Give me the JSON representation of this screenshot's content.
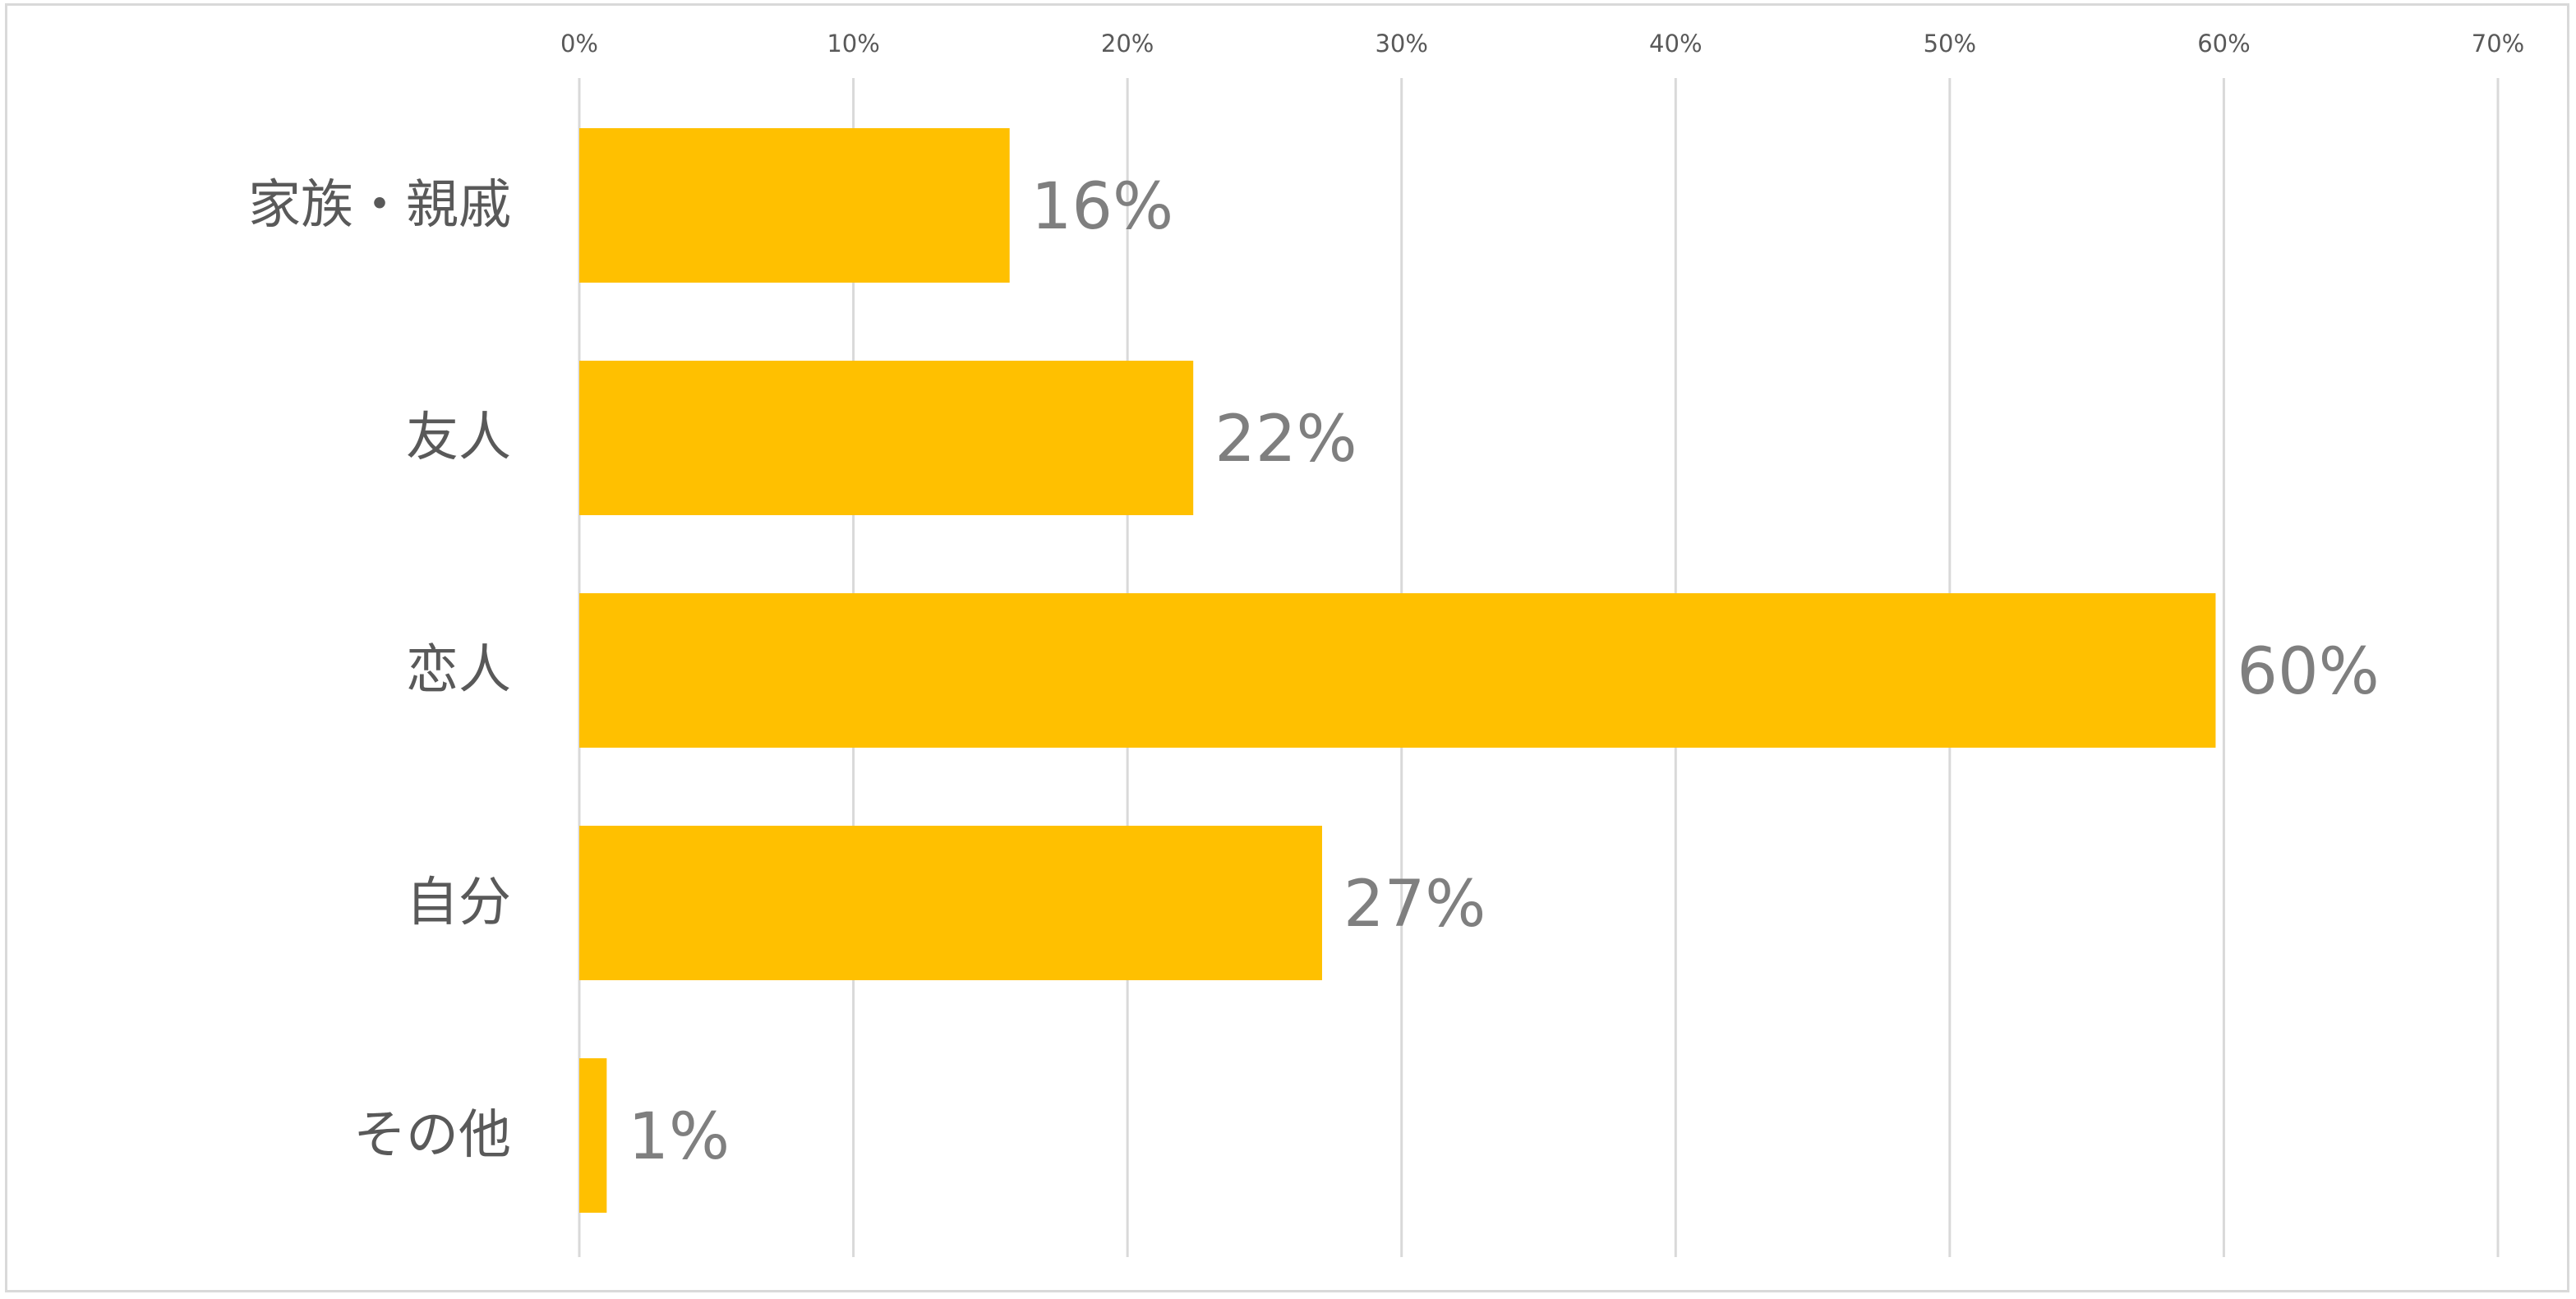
{
  "chart_data": {
    "type": "bar",
    "orientation": "horizontal",
    "categories": [
      "家族・親戚",
      "友人",
      "恋人",
      "自分",
      "その他"
    ],
    "values": [
      0.157,
      0.224,
      0.597,
      0.271,
      0.01
    ],
    "data_labels": [
      "16%",
      "22%",
      "60%",
      "27%",
      "1%"
    ],
    "xlim": [
      0,
      0.7
    ],
    "x_ticks": [
      0,
      0.1,
      0.2,
      0.3,
      0.4,
      0.5,
      0.6,
      0.7
    ],
    "x_tick_labels": [
      "0%",
      "10%",
      "20%",
      "30%",
      "40%",
      "50%",
      "60%",
      "70%"
    ],
    "x_axis_position": "top",
    "grid": true,
    "legend": "none",
    "bar_color": "#FFC000",
    "grid_color": "#D9D9D9",
    "title": "",
    "xlabel": "",
    "ylabel": ""
  }
}
